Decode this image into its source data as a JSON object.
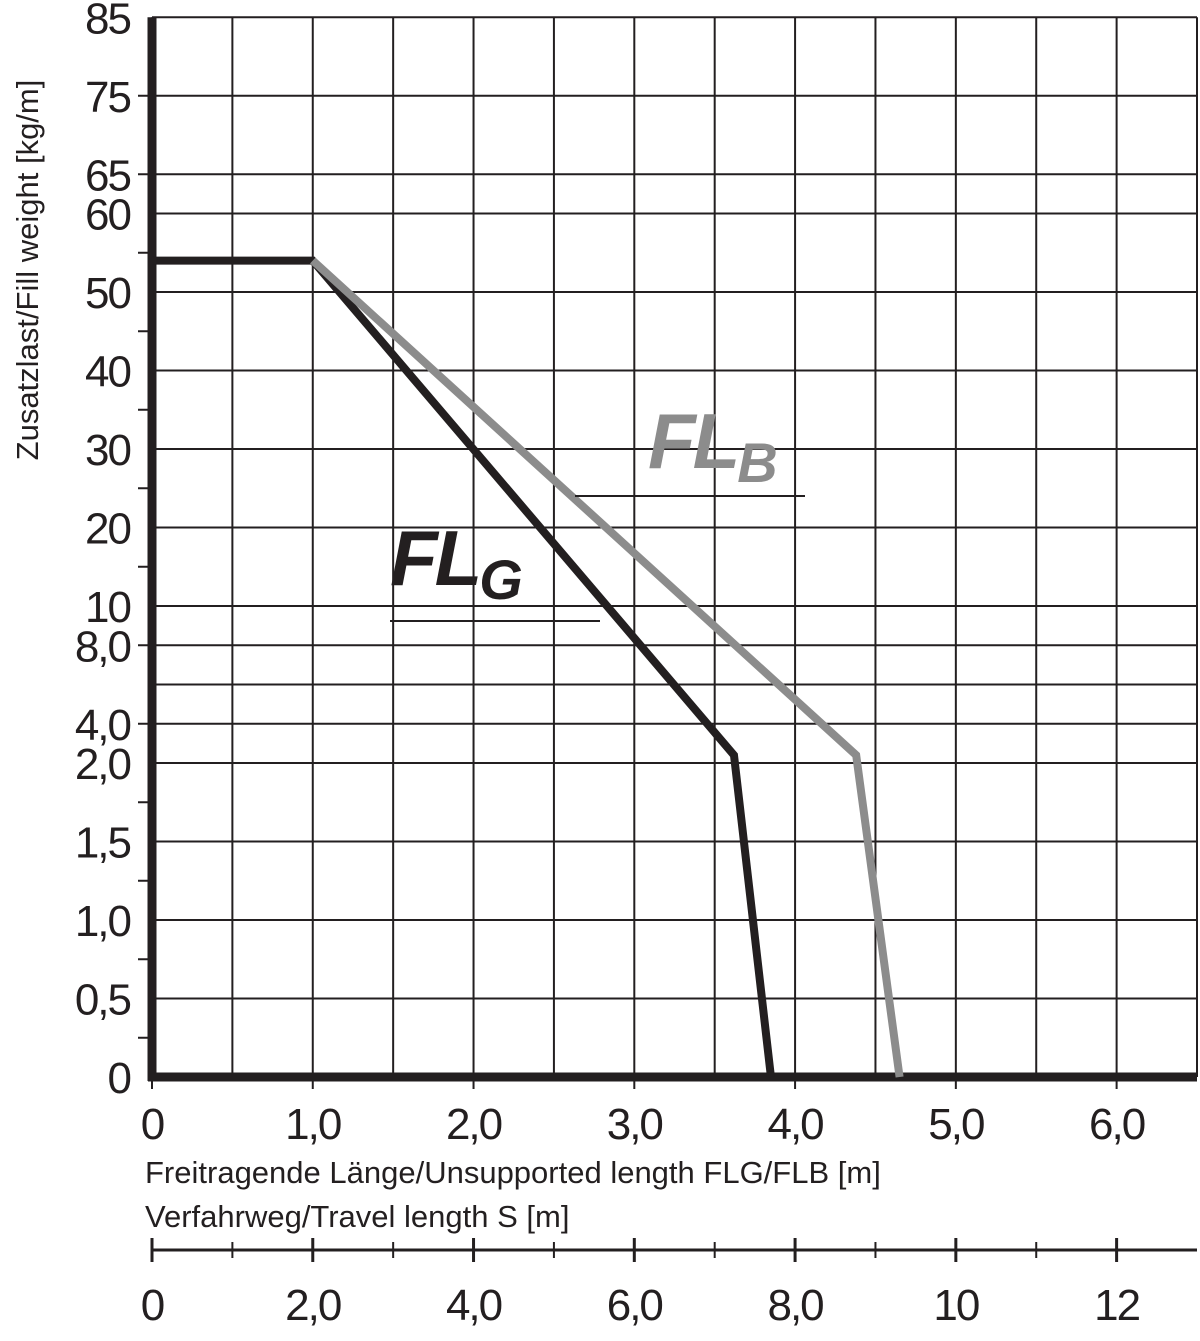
{
  "chart_data": {
    "type": "line",
    "y_label": "Zusatzlast/Fill weight [kg/m]",
    "x_label": "Freitragende Länge/Unsupported length FLG/FLB [m]",
    "x2_label": "Verfahrweg/Travel length S [m]",
    "xlim": [
      0,
      6.5
    ],
    "xticks": [
      0,
      {
        "value": 1,
        "label": "1,0"
      },
      {
        "value": 2,
        "label": "2,0"
      },
      {
        "value": 3,
        "label": "3,0"
      },
      {
        "value": 4,
        "label": "4,0"
      },
      {
        "value": 5,
        "label": "5,0"
      },
      {
        "value": 6,
        "label": "6,0"
      }
    ],
    "x2lim": [
      0,
      13
    ],
    "x2ticks": [
      0,
      {
        "value": 2,
        "label": "2,0"
      },
      {
        "value": 4,
        "label": "4,0"
      },
      {
        "value": 6,
        "label": "6,0"
      },
      {
        "value": 8,
        "label": "8,0"
      },
      10,
      12
    ],
    "ylim": [
      0,
      85
    ],
    "yticks": [
      0,
      {
        "value": 0.5,
        "label": "0,5"
      },
      {
        "value": 1,
        "label": "1,0"
      },
      {
        "value": 1.5,
        "label": "1,5"
      },
      {
        "value": 2,
        "label": "2,0"
      },
      {
        "value": 4,
        "label": "4,0"
      },
      {
        "value": 8,
        "label": "8,0"
      },
      10,
      20,
      30,
      40,
      50,
      60,
      65,
      75,
      85
    ],
    "grid": true,
    "series": [
      {
        "label": "FL",
        "label_sub": "G",
        "color": "#231f20",
        "x": [
          0,
          1,
          3.62,
          3.85
        ],
        "values": [
          54,
          54,
          2.4,
          0
        ]
      },
      {
        "label": "FL",
        "label_sub": "B",
        "color": "#8c8c8c",
        "x": [
          1,
          4.38,
          4.65
        ],
        "values": [
          54,
          2.4,
          0
        ]
      }
    ]
  }
}
